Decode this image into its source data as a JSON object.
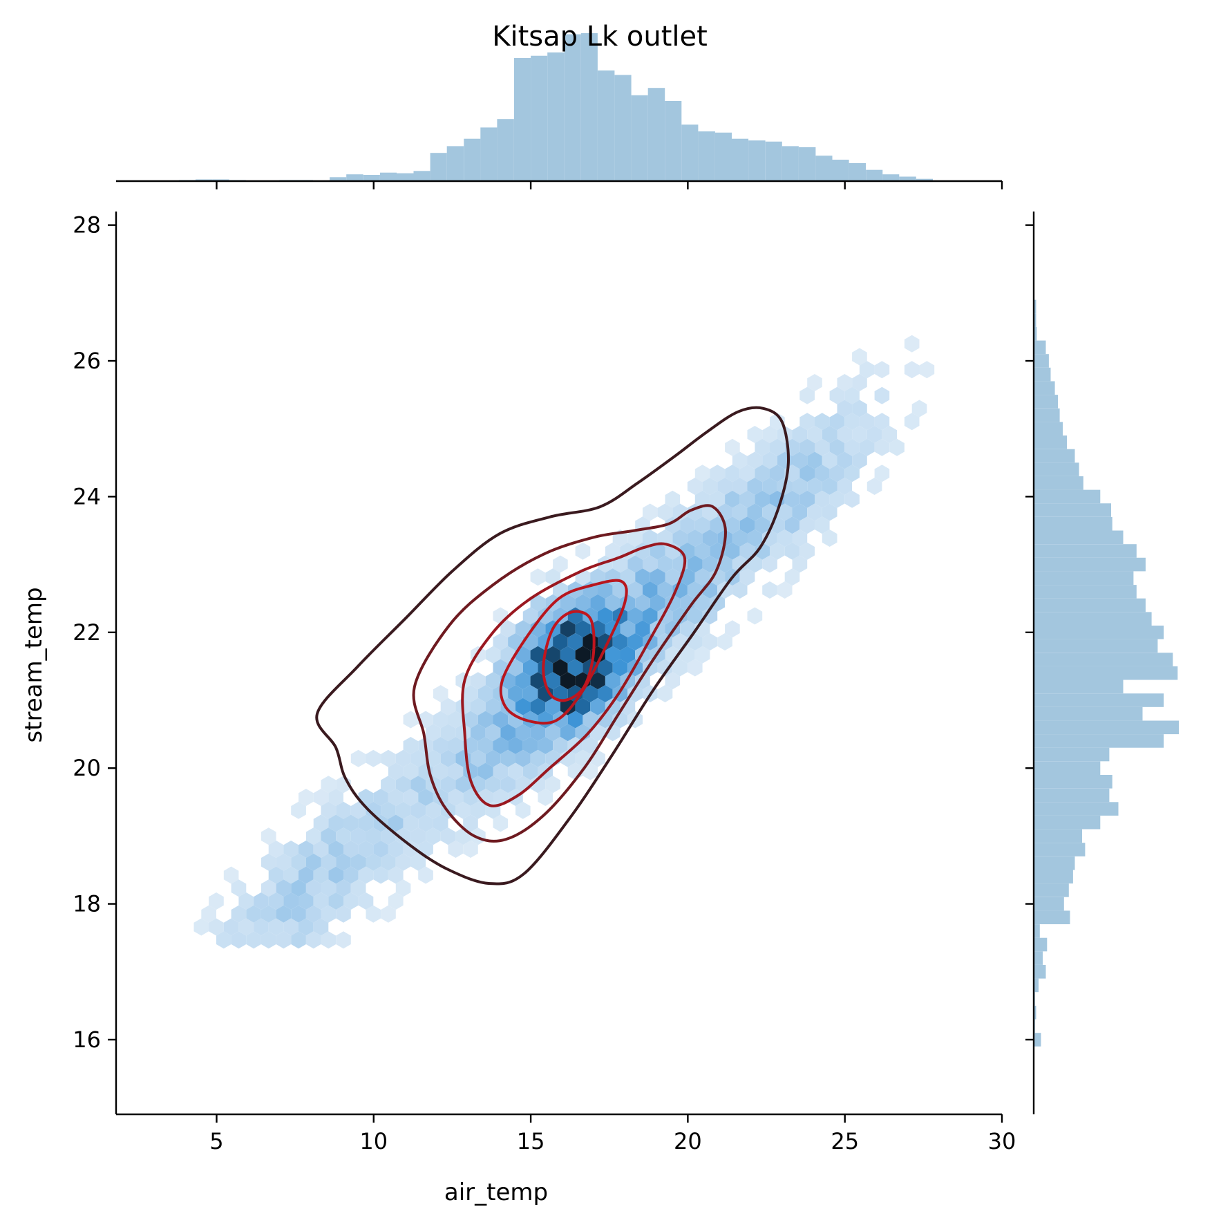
{
  "chart_data": {
    "type": "hexbin-joint",
    "title": "Kitsap Lk outlet",
    "xlabel": "air_temp",
    "ylabel": "stream_temp",
    "xlim": [
      1.8,
      30
    ],
    "ylim": [
      14.9,
      28.2
    ],
    "xticks": [
      5,
      10,
      15,
      20,
      25,
      30
    ],
    "yticks": [
      16,
      18,
      20,
      22,
      24,
      26,
      28
    ],
    "colors": {
      "hist": "#a3c6de",
      "hex_light": "#eaf2f9",
      "hex_mid": "#3d94d6",
      "hex_dark": "#0d1a26",
      "contour_outer": "#3a1a1f",
      "contour_inner": "#c0151e"
    },
    "marginal_x": {
      "bin_edges": [
        3.8,
        4.33,
        4.87,
        5.4,
        5.93,
        6.47,
        7.0,
        7.53,
        8.07,
        8.6,
        9.13,
        9.67,
        10.2,
        10.73,
        11.27,
        11.8,
        12.33,
        12.87,
        13.4,
        13.93,
        14.47,
        15.0,
        15.53,
        16.07,
        16.6,
        17.13,
        17.67,
        18.2,
        18.73,
        19.27,
        19.8,
        20.33,
        20.87,
        21.4,
        21.93,
        22.47,
        23.0,
        23.53,
        24.07,
        24.6,
        25.13,
        25.67,
        26.2,
        26.73,
        27.27,
        27.8,
        28.33
      ],
      "counts": [
        2,
        3,
        3,
        2,
        1,
        1,
        2,
        2,
        1,
        7,
        12,
        11,
        15,
        14,
        18,
        50,
        62,
        75,
        95,
        110,
        218,
        222,
        228,
        260,
        262,
        196,
        188,
        152,
        165,
        142,
        100,
        88,
        86,
        75,
        72,
        70,
        62,
        60,
        45,
        38,
        32,
        20,
        12,
        8,
        4,
        1
      ]
    },
    "marginal_y": {
      "bin_edges": [
        15.9,
        16.1,
        16.3,
        16.5,
        16.7,
        16.9,
        17.1,
        17.3,
        17.5,
        17.7,
        17.9,
        18.1,
        18.3,
        18.5,
        18.7,
        18.9,
        19.1,
        19.3,
        19.5,
        19.7,
        19.9,
        20.1,
        20.3,
        20.5,
        20.7,
        20.9,
        21.1,
        21.3,
        21.5,
        21.7,
        21.9,
        22.1,
        22.3,
        22.5,
        22.7,
        22.9,
        23.1,
        23.3,
        23.5,
        23.7,
        23.9,
        24.1,
        24.3,
        24.5,
        24.7,
        24.9,
        25.1,
        25.3,
        25.5,
        25.7,
        25.9,
        26.1,
        26.3,
        26.5,
        26.7,
        26.9
      ],
      "counts": [
        12,
        2,
        4,
        2,
        8,
        20,
        15,
        22,
        10,
        60,
        50,
        58,
        65,
        68,
        85,
        80,
        110,
        140,
        125,
        130,
        110,
        125,
        215,
        240,
        180,
        215,
        148,
        238,
        230,
        205,
        215,
        195,
        185,
        170,
        165,
        185,
        170,
        148,
        130,
        128,
        110,
        82,
        75,
        68,
        55,
        48,
        43,
        40,
        35,
        28,
        25,
        20,
        5,
        4,
        4,
        6
      ]
    },
    "contours": [
      {
        "level": "outer",
        "points": [
          [
            8.2,
            20.8
          ],
          [
            9.5,
            21.5
          ],
          [
            11,
            22.2
          ],
          [
            12.5,
            22.9
          ],
          [
            14,
            23.45
          ],
          [
            15.6,
            23.7
          ],
          [
            17.2,
            23.85
          ],
          [
            18.4,
            24.2
          ],
          [
            19.6,
            24.6
          ],
          [
            20.6,
            24.95
          ],
          [
            21.6,
            25.25
          ],
          [
            22.4,
            25.3
          ],
          [
            23.0,
            25.1
          ],
          [
            23.2,
            24.5
          ],
          [
            22.9,
            23.85
          ],
          [
            22.3,
            23.25
          ],
          [
            21.4,
            22.8
          ],
          [
            20.2,
            22.0
          ],
          [
            18.9,
            21.15
          ],
          [
            17.6,
            20.2
          ],
          [
            16.3,
            19.3
          ],
          [
            14.8,
            18.45
          ],
          [
            13.7,
            18.3
          ],
          [
            12.4,
            18.5
          ],
          [
            11.2,
            18.85
          ],
          [
            9.8,
            19.4
          ],
          [
            9.1,
            19.85
          ],
          [
            8.8,
            20.3
          ]
        ]
      },
      {
        "level": "mid-outer",
        "points": [
          [
            11.3,
            21.2
          ],
          [
            12.4,
            22.1
          ],
          [
            13.8,
            22.7
          ],
          [
            15.4,
            23.15
          ],
          [
            17.0,
            23.4
          ],
          [
            18.3,
            23.5
          ],
          [
            19.4,
            23.6
          ],
          [
            20.1,
            23.8
          ],
          [
            20.8,
            23.85
          ],
          [
            21.2,
            23.5
          ],
          [
            20.9,
            22.9
          ],
          [
            20.1,
            22.4
          ],
          [
            18.9,
            21.6
          ],
          [
            17.8,
            20.8
          ],
          [
            16.7,
            20.0
          ],
          [
            15.4,
            19.3
          ],
          [
            14.2,
            18.95
          ],
          [
            13.2,
            19.0
          ],
          [
            12.3,
            19.4
          ],
          [
            11.8,
            19.9
          ],
          [
            11.6,
            20.5
          ]
        ]
      },
      {
        "level": "mid-inner",
        "points": [
          [
            12.9,
            21.3
          ],
          [
            13.8,
            22.0
          ],
          [
            15.0,
            22.5
          ],
          [
            16.6,
            22.9
          ],
          [
            17.8,
            23.1
          ],
          [
            18.6,
            23.25
          ],
          [
            19.3,
            23.3
          ],
          [
            19.9,
            23.1
          ],
          [
            19.6,
            22.6
          ],
          [
            18.8,
            21.9
          ],
          [
            17.8,
            21.1
          ],
          [
            16.8,
            20.5
          ],
          [
            15.6,
            20.0
          ],
          [
            14.6,
            19.6
          ],
          [
            13.7,
            19.45
          ],
          [
            13.1,
            19.8
          ],
          [
            12.9,
            20.5
          ]
        ]
      },
      {
        "level": "inner",
        "points": [
          [
            14.1,
            21.3
          ],
          [
            14.9,
            21.95
          ],
          [
            15.9,
            22.5
          ],
          [
            17.0,
            22.7
          ],
          [
            17.9,
            22.75
          ],
          [
            18.0,
            22.45
          ],
          [
            17.4,
            21.8
          ],
          [
            16.6,
            21.1
          ],
          [
            15.8,
            20.7
          ],
          [
            14.9,
            20.7
          ],
          [
            14.2,
            20.9
          ]
        ]
      },
      {
        "level": "core",
        "points": [
          [
            15.4,
            21.5
          ],
          [
            15.7,
            22.05
          ],
          [
            16.3,
            22.3
          ],
          [
            16.9,
            22.2
          ],
          [
            17.0,
            21.7
          ],
          [
            16.7,
            21.2
          ],
          [
            16.1,
            21.0
          ],
          [
            15.6,
            21.1
          ]
        ]
      }
    ]
  }
}
